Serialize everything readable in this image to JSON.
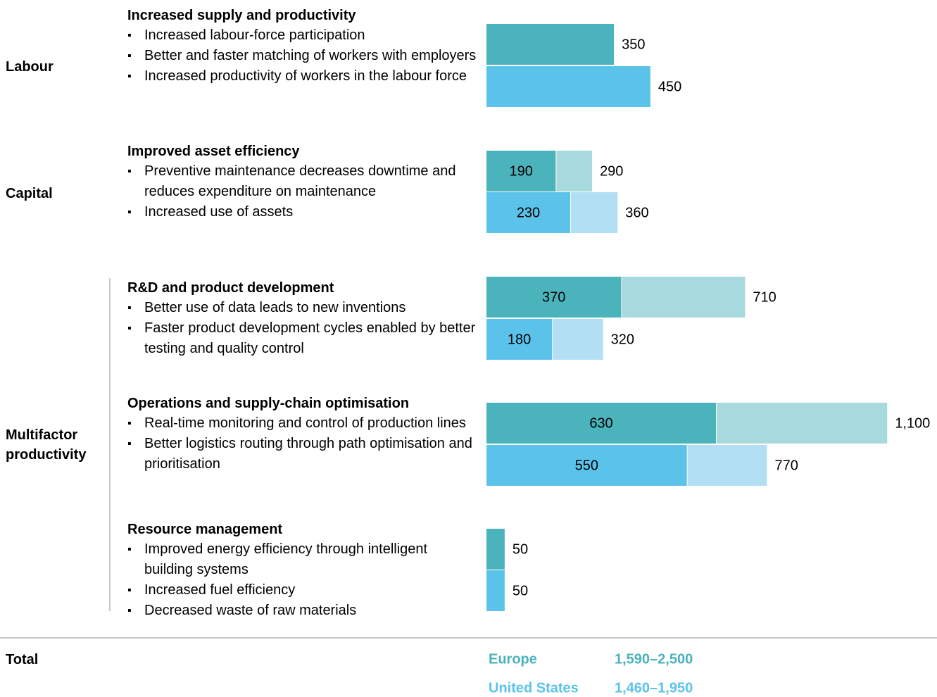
{
  "chart_data": {
    "type": "range-bar",
    "total_title": "Total",
    "groups": [
      {
        "label": "Labour",
        "levers": [
          0
        ]
      },
      {
        "label": "Capital",
        "levers": [
          1
        ]
      },
      {
        "label": "Multifactor productivity",
        "levers": [
          2,
          3,
          4
        ]
      }
    ],
    "levers": [
      {
        "title": "Increased supply and productivity",
        "bullets": [
          "Increased labour-force participation",
          "Better and faster matching of workers with employers",
          "Increased productivity of workers in the labour force"
        ]
      },
      {
        "title": "Improved asset efficiency",
        "bullets": [
          "Preventive maintenance decreases downtime and reduces expenditure on maintenance",
          "Increased use of assets"
        ]
      },
      {
        "title": "R&D and product development",
        "bullets": [
          "Better use of data leads to new inventions",
          "Faster product development cycles enabled by better testing and quality control"
        ]
      },
      {
        "title": "Operations and supply-chain optimisation",
        "bullets": [
          "Real-time monitoring and control of production lines",
          "Better logistics routing through path optimisation and prioritisation"
        ]
      },
      {
        "title": "Resource management",
        "bullets": [
          "Improved energy efficiency through intelligent building systems",
          "Increased fuel efficiency",
          "Decreased waste of raw materials"
        ]
      }
    ],
    "series": [
      {
        "name": "Europe",
        "color": "#4ab3bb",
        "light_color": "#a8d9dc",
        "values": [
          350,
          190,
          370,
          630,
          50
        ],
        "high_values": [
          null,
          290,
          710,
          1100,
          null
        ],
        "high_value_labels": [
          null,
          "290",
          "710",
          "1,100",
          null
        ],
        "total_label": "1,590–2,500"
      },
      {
        "name": "United States",
        "color": "#5bc3ea",
        "light_color": "#b3dff5",
        "values": [
          450,
          230,
          180,
          550,
          50
        ],
        "high_values": [
          null,
          360,
          320,
          770,
          null
        ],
        "high_value_labels": [
          null,
          "360",
          "320",
          "770",
          null
        ],
        "total_label": "1,460–1,950"
      }
    ]
  }
}
